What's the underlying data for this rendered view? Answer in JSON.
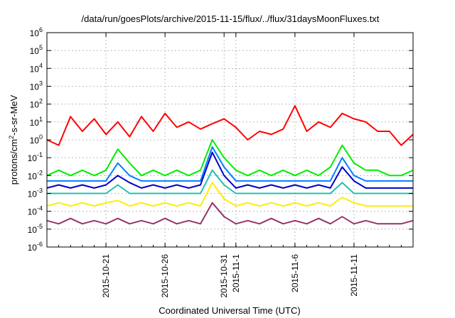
{
  "chart_data": {
    "type": "line",
    "title": "/data/run/goesPlots/archive/2015-11-15/flux/../flux/31daysMoonFluxes.txt",
    "xlabel": "Coordinated Universal Time (UTC)",
    "ylabel": "protons/cm²-s-sr-MeV",
    "ylabel_parts": {
      "pre": "protons/cm",
      "sup": "2",
      "post": "-s-sr-MeV"
    },
    "x_range": [
      "2015-10-16",
      "2015-11-16"
    ],
    "x_ticks": [
      "2015-10-21",
      "2015-10-26",
      "2015-10-31",
      "2015-11-1",
      "2015-11-6",
      "2015-11-11"
    ],
    "y_scale": "log",
    "y_range": [
      1e-06,
      1000000.0
    ],
    "y_ticks": [
      {
        "value": 1e-06,
        "base": "10",
        "exp": "-6"
      },
      {
        "value": 1e-05,
        "base": "10",
        "exp": "-5"
      },
      {
        "value": 0.0001,
        "base": "10",
        "exp": "-4"
      },
      {
        "value": 0.001,
        "base": "10",
        "exp": "-3"
      },
      {
        "value": 0.01,
        "base": "10",
        "exp": "-2"
      },
      {
        "value": 0.1,
        "base": "10",
        "exp": "-1"
      },
      {
        "value": 1,
        "base": "10",
        "exp": "0"
      },
      {
        "value": 10.0,
        "base": "10",
        "exp": "1"
      },
      {
        "value": 100.0,
        "base": "10",
        "exp": "2"
      },
      {
        "value": 1000.0,
        "base": "10",
        "exp": "3"
      },
      {
        "value": 10000.0,
        "base": "10",
        "exp": "4"
      },
      {
        "value": 100000.0,
        "base": "10",
        "exp": "5"
      },
      {
        "value": 1000000.0,
        "base": "10",
        "exp": "6"
      }
    ],
    "grid": true,
    "series": [
      {
        "color": "#ff0000",
        "x": [
          "2015-10-16",
          "2015-10-17",
          "2015-10-18",
          "2015-10-19",
          "2015-10-20",
          "2015-10-21",
          "2015-10-22",
          "2015-10-23",
          "2015-10-24",
          "2015-10-25",
          "2015-10-26",
          "2015-10-27",
          "2015-10-28",
          "2015-10-29",
          "2015-10-30",
          "2015-10-31",
          "2015-11-01",
          "2015-11-02",
          "2015-11-03",
          "2015-11-04",
          "2015-11-05",
          "2015-11-06",
          "2015-11-07",
          "2015-11-08",
          "2015-11-09",
          "2015-11-10",
          "2015-11-11",
          "2015-11-12",
          "2015-11-13",
          "2015-11-14",
          "2015-11-15",
          "2015-11-16"
        ],
        "y": [
          1,
          0.5,
          20,
          3,
          15,
          2,
          10,
          1.5,
          20,
          3,
          30,
          5,
          10,
          4,
          8,
          15,
          5,
          1,
          3,
          2,
          4,
          80,
          3,
          10,
          5,
          30,
          15,
          10,
          3,
          3,
          0.5,
          2
        ]
      },
      {
        "color": "#00ee00",
        "x": [
          "2015-10-16",
          "2015-10-17",
          "2015-10-18",
          "2015-10-19",
          "2015-10-20",
          "2015-10-21",
          "2015-10-22",
          "2015-10-23",
          "2015-10-24",
          "2015-10-25",
          "2015-10-26",
          "2015-10-27",
          "2015-10-28",
          "2015-10-29",
          "2015-10-30",
          "2015-10-31",
          "2015-11-01",
          "2015-11-02",
          "2015-11-03",
          "2015-11-04",
          "2015-11-05",
          "2015-11-06",
          "2015-11-07",
          "2015-11-08",
          "2015-11-09",
          "2015-11-10",
          "2015-11-11",
          "2015-11-12",
          "2015-11-13",
          "2015-11-14",
          "2015-11-15",
          "2015-11-16"
        ],
        "y": [
          0.01,
          0.02,
          0.01,
          0.02,
          0.01,
          0.02,
          0.3,
          0.05,
          0.01,
          0.02,
          0.01,
          0.02,
          0.01,
          0.02,
          1,
          0.1,
          0.02,
          0.01,
          0.02,
          0.01,
          0.02,
          0.01,
          0.02,
          0.01,
          0.03,
          0.5,
          0.05,
          0.02,
          0.02,
          0.01,
          0.01,
          0.02
        ]
      },
      {
        "color": "#0080ff",
        "x": [
          "2015-10-16",
          "2015-10-17",
          "2015-10-18",
          "2015-10-19",
          "2015-10-20",
          "2015-10-21",
          "2015-10-22",
          "2015-10-23",
          "2015-10-24",
          "2015-10-25",
          "2015-10-26",
          "2015-10-27",
          "2015-10-28",
          "2015-10-29",
          "2015-10-30",
          "2015-10-31",
          "2015-11-01",
          "2015-11-02",
          "2015-11-03",
          "2015-11-04",
          "2015-11-05",
          "2015-11-06",
          "2015-11-07",
          "2015-11-08",
          "2015-11-09",
          "2015-11-10",
          "2015-11-11",
          "2015-11-12",
          "2015-11-13",
          "2015-11-14",
          "2015-11-15",
          "2015-11-16"
        ],
        "y": [
          0.005,
          0.005,
          0.005,
          0.005,
          0.005,
          0.005,
          0.05,
          0.01,
          0.005,
          0.005,
          0.005,
          0.005,
          0.005,
          0.005,
          0.4,
          0.03,
          0.005,
          0.005,
          0.005,
          0.005,
          0.005,
          0.005,
          0.005,
          0.005,
          0.005,
          0.1,
          0.01,
          0.005,
          0.005,
          0.005,
          0.005,
          0.005
        ]
      },
      {
        "color": "#0000cc",
        "x": [
          "2015-10-16",
          "2015-10-17",
          "2015-10-18",
          "2015-10-19",
          "2015-10-20",
          "2015-10-21",
          "2015-10-22",
          "2015-10-23",
          "2015-10-24",
          "2015-10-25",
          "2015-10-26",
          "2015-10-27",
          "2015-10-28",
          "2015-10-29",
          "2015-10-30",
          "2015-10-31",
          "2015-11-01",
          "2015-11-02",
          "2015-11-03",
          "2015-11-04",
          "2015-11-05",
          "2015-11-06",
          "2015-11-07",
          "2015-11-08",
          "2015-11-09",
          "2015-11-10",
          "2015-11-11",
          "2015-11-12",
          "2015-11-13",
          "2015-11-14",
          "2015-11-15",
          "2015-11-16"
        ],
        "y": [
          0.002,
          0.003,
          0.002,
          0.003,
          0.002,
          0.003,
          0.01,
          0.004,
          0.002,
          0.003,
          0.002,
          0.003,
          0.002,
          0.003,
          0.2,
          0.01,
          0.002,
          0.003,
          0.002,
          0.003,
          0.002,
          0.003,
          0.002,
          0.003,
          0.002,
          0.03,
          0.005,
          0.002,
          0.002,
          0.002,
          0.002,
          0.002
        ]
      },
      {
        "color": "#20c0b0",
        "x": [
          "2015-10-16",
          "2015-10-17",
          "2015-10-18",
          "2015-10-19",
          "2015-10-20",
          "2015-10-21",
          "2015-10-22",
          "2015-10-23",
          "2015-10-24",
          "2015-10-25",
          "2015-10-26",
          "2015-10-27",
          "2015-10-28",
          "2015-10-29",
          "2015-10-30",
          "2015-10-31",
          "2015-11-01",
          "2015-11-02",
          "2015-11-03",
          "2015-11-04",
          "2015-11-05",
          "2015-11-06",
          "2015-11-07",
          "2015-11-08",
          "2015-11-09",
          "2015-11-10",
          "2015-11-11",
          "2015-11-12",
          "2015-11-13",
          "2015-11-14",
          "2015-11-15",
          "2015-11-16"
        ],
        "y": [
          0.001,
          0.001,
          0.001,
          0.001,
          0.001,
          0.001,
          0.003,
          0.001,
          0.001,
          0.001,
          0.001,
          0.001,
          0.001,
          0.001,
          0.02,
          0.003,
          0.001,
          0.001,
          0.001,
          0.001,
          0.001,
          0.001,
          0.001,
          0.001,
          0.001,
          0.004,
          0.001,
          0.001,
          0.001,
          0.001,
          0.001,
          0.001
        ]
      },
      {
        "color": "#ffee00",
        "x": [
          "2015-10-16",
          "2015-10-17",
          "2015-10-18",
          "2015-10-19",
          "2015-10-20",
          "2015-10-21",
          "2015-10-22",
          "2015-10-23",
          "2015-10-24",
          "2015-10-25",
          "2015-10-26",
          "2015-10-27",
          "2015-10-28",
          "2015-10-29",
          "2015-10-30",
          "2015-10-31",
          "2015-11-01",
          "2015-11-02",
          "2015-11-03",
          "2015-11-04",
          "2015-11-05",
          "2015-11-06",
          "2015-11-07",
          "2015-11-08",
          "2015-11-09",
          "2015-11-10",
          "2015-11-11",
          "2015-11-12",
          "2015-11-13",
          "2015-11-14",
          "2015-11-15",
          "2015-11-16"
        ],
        "y": [
          0.0002,
          0.0003,
          0.0002,
          0.0003,
          0.0002,
          0.0003,
          0.0004,
          0.0002,
          0.0003,
          0.0002,
          0.0003,
          0.0002,
          0.0003,
          0.0002,
          0.004,
          0.0005,
          0.0002,
          0.0003,
          0.0002,
          0.0003,
          0.0002,
          0.0003,
          0.0002,
          0.0003,
          0.0002,
          0.0006,
          0.0003,
          0.0002,
          0.0002,
          0.0002,
          0.0002,
          0.0002
        ]
      },
      {
        "color": "#993366",
        "x": [
          "2015-10-16",
          "2015-10-17",
          "2015-10-18",
          "2015-10-19",
          "2015-10-20",
          "2015-10-21",
          "2015-10-22",
          "2015-10-23",
          "2015-10-24",
          "2015-10-25",
          "2015-10-26",
          "2015-10-27",
          "2015-10-28",
          "2015-10-29",
          "2015-10-30",
          "2015-10-31",
          "2015-11-01",
          "2015-11-02",
          "2015-11-03",
          "2015-11-04",
          "2015-11-05",
          "2015-11-06",
          "2015-11-07",
          "2015-11-08",
          "2015-11-09",
          "2015-11-10",
          "2015-11-11",
          "2015-11-12",
          "2015-11-13",
          "2015-11-14",
          "2015-11-15",
          "2015-11-16"
        ],
        "y": [
          3e-05,
          2e-05,
          4e-05,
          2e-05,
          3e-05,
          2e-05,
          4e-05,
          2e-05,
          3e-05,
          2e-05,
          4e-05,
          2e-05,
          3e-05,
          2e-05,
          0.0003,
          5e-05,
          2e-05,
          3e-05,
          2e-05,
          4e-05,
          2e-05,
          3e-05,
          2e-05,
          4e-05,
          2e-05,
          5e-05,
          2e-05,
          3e-05,
          2e-05,
          2e-05,
          2e-05,
          3e-05
        ]
      }
    ]
  }
}
